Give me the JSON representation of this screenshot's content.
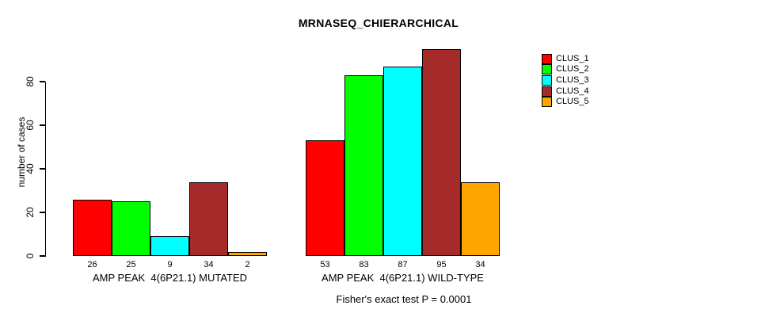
{
  "footnote": "Fisher's exact test P = 0.0001",
  "chart_data": {
    "type": "bar",
    "title": "MRNASEQ_CHIERARCHICAL",
    "xlabel": "",
    "ylabel": "number of cases",
    "categories": [
      "AMP PEAK  4(6P21.1) MUTATED",
      "AMP PEAK  4(6P21.1) WILD-TYPE"
    ],
    "series": [
      {
        "name": "CLUS_1",
        "color": "#FF0000",
        "values": [
          26,
          53
        ]
      },
      {
        "name": "CLUS_2",
        "color": "#00FF00",
        "values": [
          25,
          83
        ]
      },
      {
        "name": "CLUS_3",
        "color": "#00FFFF",
        "values": [
          9,
          87
        ]
      },
      {
        "name": "CLUS_4",
        "color": "#A52A2A",
        "values": [
          34,
          95
        ]
      },
      {
        "name": "CLUS_5",
        "color": "#FFA500",
        "values": [
          2,
          34
        ]
      }
    ],
    "bar_value_labels": [
      [
        "26",
        "25",
        "9",
        "34",
        "2"
      ],
      [
        "53",
        "83",
        "87",
        "95",
        "34"
      ]
    ],
    "yticks": [
      0,
      20,
      40,
      60,
      80
    ],
    "ylim": [
      0,
      96
    ],
    "grid": false,
    "legend_position": "right",
    "annotation": "Fisher's exact test P = 0.0001"
  }
}
